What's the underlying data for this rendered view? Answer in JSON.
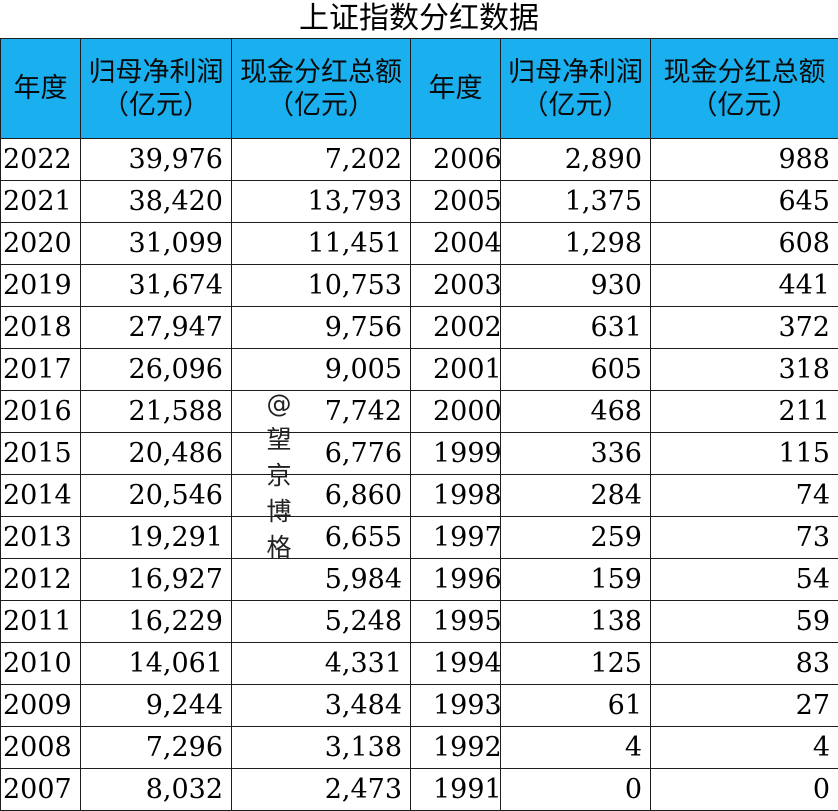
{
  "title": "上证指数分红数据",
  "headers": {
    "year": "年度",
    "profit_line1": "归母净利润",
    "profit_line2": "（亿元）",
    "dividend_line1": "现金分红总额",
    "dividend_line2": "（亿元）"
  },
  "left_rows": [
    {
      "year": "2022",
      "profit": "39,976",
      "dividend": "7,202"
    },
    {
      "year": "2021",
      "profit": "38,420",
      "dividend": "13,793"
    },
    {
      "year": "2020",
      "profit": "31,099",
      "dividend": "11,451"
    },
    {
      "year": "2019",
      "profit": "31,674",
      "dividend": "10,753"
    },
    {
      "year": "2018",
      "profit": "27,947",
      "dividend": "9,756"
    },
    {
      "year": "2017",
      "profit": "26,096",
      "dividend": "9,005"
    },
    {
      "year": "2016",
      "profit": "21,588",
      "dividend": "7,742"
    },
    {
      "year": "2015",
      "profit": "20,486",
      "dividend": "6,776"
    },
    {
      "year": "2014",
      "profit": "20,546",
      "dividend": "6,860"
    },
    {
      "year": "2013",
      "profit": "19,291",
      "dividend": "6,655"
    },
    {
      "year": "2012",
      "profit": "16,927",
      "dividend": "5,984"
    },
    {
      "year": "2011",
      "profit": "16,229",
      "dividend": "5,248"
    },
    {
      "year": "2010",
      "profit": "14,061",
      "dividend": "4,331"
    },
    {
      "year": "2009",
      "profit": "9,244",
      "dividend": "3,484"
    },
    {
      "year": "2008",
      "profit": "7,296",
      "dividend": "3,138"
    },
    {
      "year": "2007",
      "profit": "8,032",
      "dividend": "2,473"
    }
  ],
  "right_rows": [
    {
      "year": "2006",
      "profit": "2,890",
      "dividend": "988"
    },
    {
      "year": "2005",
      "profit": "1,375",
      "dividend": "645"
    },
    {
      "year": "2004",
      "profit": "1,298",
      "dividend": "608"
    },
    {
      "year": "2003",
      "profit": "930",
      "dividend": "441"
    },
    {
      "year": "2002",
      "profit": "631",
      "dividend": "372"
    },
    {
      "year": "2001",
      "profit": "605",
      "dividend": "318"
    },
    {
      "year": "2000",
      "profit": "468",
      "dividend": "211"
    },
    {
      "year": "1999",
      "profit": "336",
      "dividend": "115"
    },
    {
      "year": "1998",
      "profit": "284",
      "dividend": "74"
    },
    {
      "year": "1997",
      "profit": "259",
      "dividend": "73"
    },
    {
      "year": "1996",
      "profit": "159",
      "dividend": "54"
    },
    {
      "year": "1995",
      "profit": "138",
      "dividend": "59"
    },
    {
      "year": "1994",
      "profit": "125",
      "dividend": "83"
    },
    {
      "year": "1993",
      "profit": "61",
      "dividend": "27"
    },
    {
      "year": "1992",
      "profit": "4",
      "dividend": "4"
    },
    {
      "year": "1991",
      "profit": "0",
      "dividend": "0"
    }
  ],
  "watermark": [
    "@",
    "望",
    "京",
    "博",
    "格"
  ],
  "colors": {
    "header_bg": "#1ab0f0",
    "border": "#1e1e1e"
  }
}
